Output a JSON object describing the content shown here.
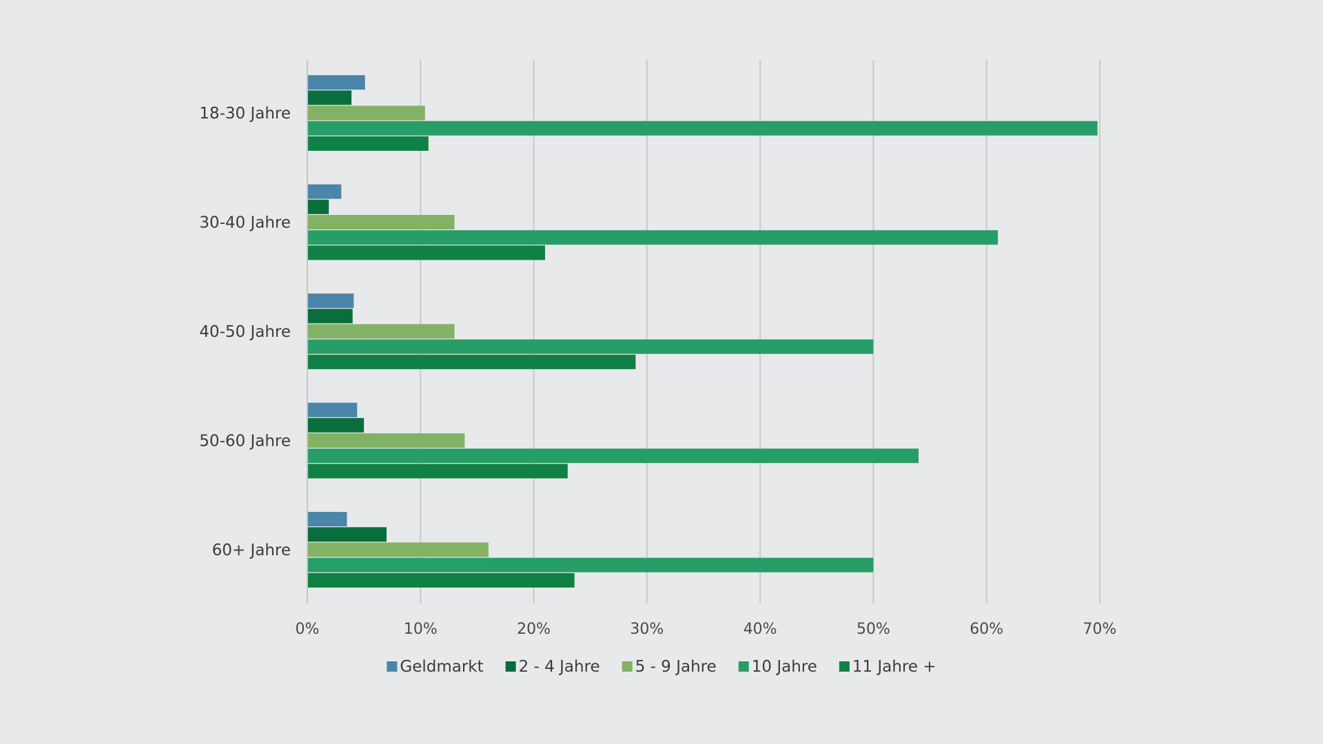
{
  "chart_data": {
    "type": "bar",
    "orientation": "horizontal",
    "categories": [
      "18-30 Jahre",
      "30-40 Jahre",
      "40-50 Jahre",
      "50-60 Jahre",
      "60+ Jahre"
    ],
    "series": [
      {
        "name": "Geldmarkt",
        "color": "#4a86aa",
        "values": [
          5.1,
          3.0,
          4.1,
          4.4,
          3.5
        ]
      },
      {
        "name": "2 - 4 Jahre",
        "color": "#0a6e3c",
        "values": [
          3.9,
          1.9,
          4.0,
          5.0,
          7.0
        ]
      },
      {
        "name": "5 - 9 Jahre",
        "color": "#84b264",
        "values": [
          10.4,
          13.0,
          13.0,
          13.9,
          16.0
        ]
      },
      {
        "name": "10 Jahre",
        "color": "#279d67",
        "values": [
          69.8,
          61.0,
          50.0,
          54.0,
          50.0
        ]
      },
      {
        "name": "11 Jahre +",
        "color": "#0f8144",
        "values": [
          10.7,
          21.0,
          29.0,
          23.0,
          23.6
        ]
      }
    ],
    "xlim": [
      0,
      70
    ],
    "xticks": [
      0,
      10,
      20,
      30,
      40,
      50,
      60,
      70
    ],
    "xtick_labels": [
      "0%",
      "10%",
      "20%",
      "30%",
      "40%",
      "50%",
      "60%",
      "70%"
    ],
    "title": "",
    "xlabel": "",
    "ylabel": "",
    "grid": "vertical",
    "legend_position": "bottom"
  }
}
